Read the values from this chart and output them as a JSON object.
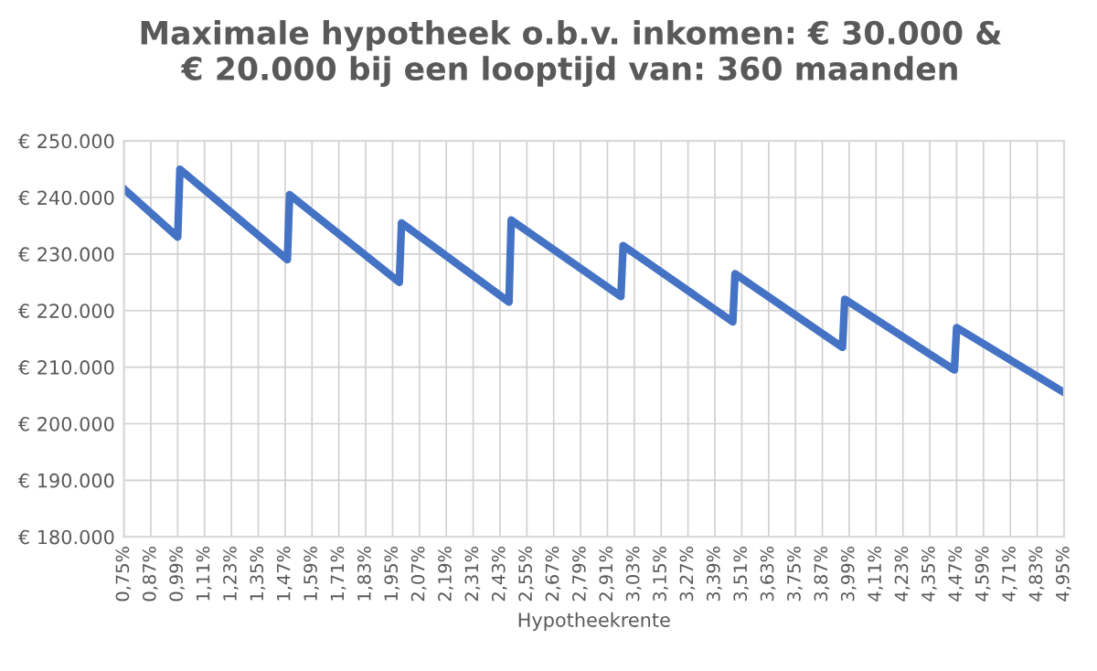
{
  "chart_data": {
    "type": "line",
    "title": "Maximale hypotheek o.b.v. inkomen: € 30.000 &\n€ 20.000 bij een looptijd van: 360 maanden",
    "xlabel": "Hypotheekrente",
    "series": [
      {
        "color": "#4472c4",
        "x": [
          0.75,
          0.99,
          1.0,
          1.48,
          1.49,
          1.98,
          1.99,
          2.47,
          2.48,
          2.97,
          2.98,
          3.47,
          3.48,
          3.96,
          3.97,
          4.46,
          4.47,
          4.95
        ],
        "values": [
          241500,
          233000,
          245000,
          229000,
          240500,
          225000,
          235500,
          221500,
          236000,
          222500,
          231500,
          218000,
          226500,
          213500,
          222000,
          209500,
          217000,
          205500
        ]
      }
    ],
    "xlim": [
      0.75,
      4.95
    ],
    "ylim": [
      180000,
      250000
    ],
    "xticks": [
      {
        "value": 0.75,
        "label": "0,75%"
      },
      {
        "value": 0.87,
        "label": "0,87%"
      },
      {
        "value": 0.99,
        "label": "0,99%"
      },
      {
        "value": 1.11,
        "label": "1,11%"
      },
      {
        "value": 1.23,
        "label": "1,23%"
      },
      {
        "value": 1.35,
        "label": "1,35%"
      },
      {
        "value": 1.47,
        "label": "1,47%"
      },
      {
        "value": 1.59,
        "label": "1,59%"
      },
      {
        "value": 1.71,
        "label": "1,71%"
      },
      {
        "value": 1.83,
        "label": "1,83%"
      },
      {
        "value": 1.95,
        "label": "1,95%"
      },
      {
        "value": 2.07,
        "label": "2,07%"
      },
      {
        "value": 2.19,
        "label": "2,19%"
      },
      {
        "value": 2.31,
        "label": "2,31%"
      },
      {
        "value": 2.43,
        "label": "2,43%"
      },
      {
        "value": 2.55,
        "label": "2,55%"
      },
      {
        "value": 2.67,
        "label": "2,67%"
      },
      {
        "value": 2.79,
        "label": "2,79%"
      },
      {
        "value": 2.91,
        "label": "2,91%"
      },
      {
        "value": 3.03,
        "label": "3,03%"
      },
      {
        "value": 3.15,
        "label": "3,15%"
      },
      {
        "value": 3.27,
        "label": "3,27%"
      },
      {
        "value": 3.39,
        "label": "3,39%"
      },
      {
        "value": 3.51,
        "label": "3,51%"
      },
      {
        "value": 3.63,
        "label": "3,63%"
      },
      {
        "value": 3.75,
        "label": "3,75%"
      },
      {
        "value": 3.87,
        "label": "3,87%"
      },
      {
        "value": 3.99,
        "label": "3,99%"
      },
      {
        "value": 4.11,
        "label": "4,11%"
      },
      {
        "value": 4.23,
        "label": "4,23%"
      },
      {
        "value": 4.35,
        "label": "4,35%"
      },
      {
        "value": 4.47,
        "label": "4,47%"
      },
      {
        "value": 4.59,
        "label": "4,59%"
      },
      {
        "value": 4.71,
        "label": "4,71%"
      },
      {
        "value": 4.83,
        "label": "4,83%"
      },
      {
        "value": 4.95,
        "label": "4,95%"
      }
    ],
    "yticks": [
      {
        "value": 180000,
        "label": "€ 180.000"
      },
      {
        "value": 190000,
        "label": "€ 190.000"
      },
      {
        "value": 200000,
        "label": "€ 200.000"
      },
      {
        "value": 210000,
        "label": "€ 210.000"
      },
      {
        "value": 220000,
        "label": "€ 220.000"
      },
      {
        "value": 230000,
        "label": "€ 230.000"
      },
      {
        "value": 240000,
        "label": "€ 240.000"
      },
      {
        "value": 250000,
        "label": "€ 250.000"
      }
    ],
    "grid": true,
    "legend": false,
    "marker": "none",
    "line_style": "solid"
  }
}
